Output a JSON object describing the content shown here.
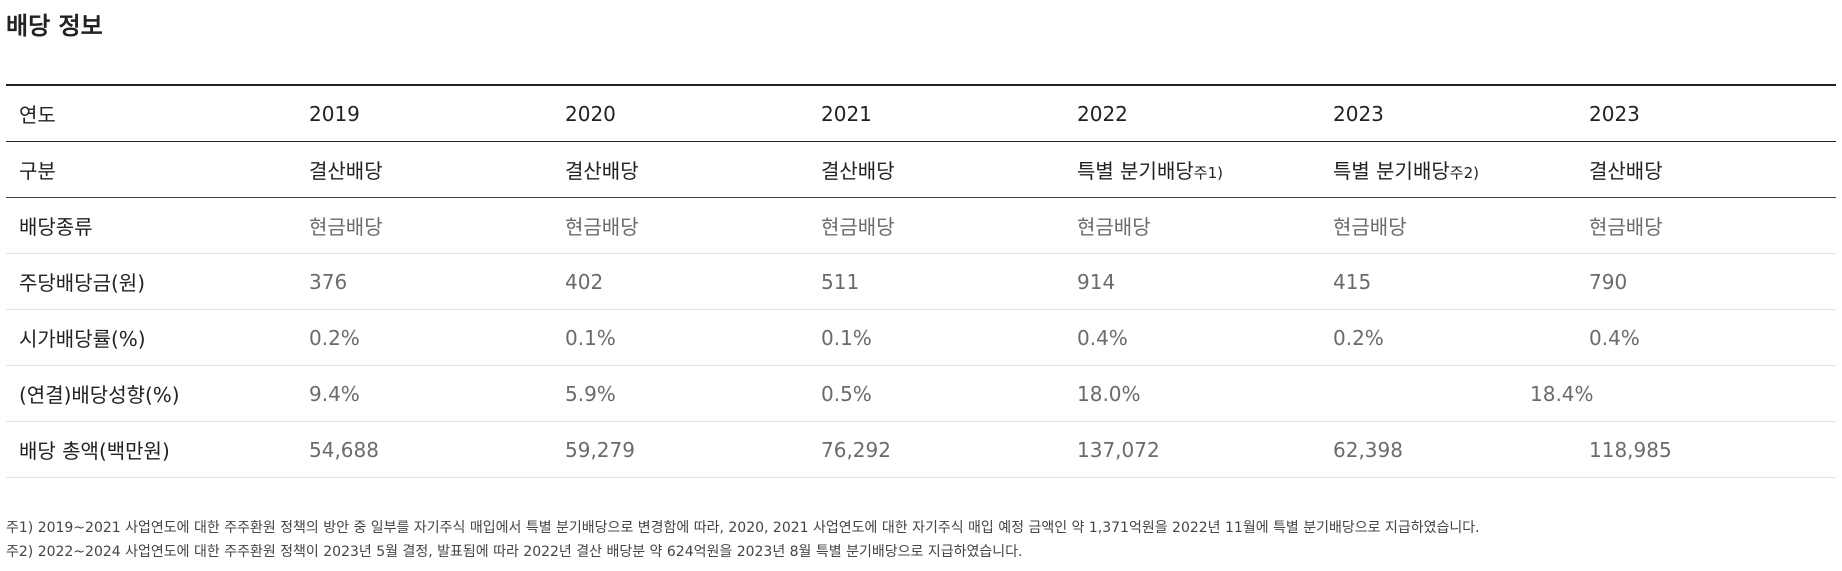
{
  "title": "배당 정보",
  "table": {
    "header": {
      "label": "연도",
      "years": [
        "2019",
        "2020",
        "2021",
        "2022",
        "2023",
        "2023"
      ]
    },
    "type_row": {
      "label": "구분",
      "cells": [
        {
          "text": "결산배당",
          "note": ""
        },
        {
          "text": "결산배당",
          "note": ""
        },
        {
          "text": "결산배당",
          "note": ""
        },
        {
          "text": "특별 분기배당",
          "note": "주1)"
        },
        {
          "text": "특별 분기배당",
          "note": "주2)"
        },
        {
          "text": "결산배당",
          "note": ""
        }
      ]
    },
    "rows": [
      {
        "label": "배당종류",
        "values": [
          "현금배당",
          "현금배당",
          "현금배당",
          "현금배당",
          "현금배당",
          "현금배당"
        ]
      },
      {
        "label": "주당배당금(원)",
        "values": [
          "376",
          "402",
          "511",
          "914",
          "415",
          "790"
        ]
      },
      {
        "label": "시가배당률(%)",
        "values": [
          "0.2%",
          "0.1%",
          "0.1%",
          "0.4%",
          "0.2%",
          "0.4%"
        ]
      }
    ],
    "payout_row": {
      "label": "(연결)배당성향(%)",
      "values": [
        "9.4%",
        "5.9%",
        "0.5%",
        "18.0%"
      ],
      "merged_2023": "18.4%"
    },
    "total_row": {
      "label": "배당 총액(백만원)",
      "values": [
        "54,688",
        "59,279",
        "76,292",
        "137,072",
        "62,398",
        "118,985"
      ]
    }
  },
  "footnotes": [
    "주1) 2019~2021 사업연도에 대한 주주환원 정책의 방안 중 일부를 자기주식 매입에서 특별 분기배당으로 변경함에 따라, 2020, 2021 사업연도에 대한 자기주식 매입 예정 금액인 약 1,371억원을 2022년 11월에 특별 분기배당으로 지급하였습니다.",
    "주2) 2022~2024 사업연도에 대한 주주환원 정책이 2023년 5월 결정, 발표됨에 따라 2022년 결산 배당분 약 624억원을 2023년 8월 특별 분기배당으로 지급하였습니다."
  ]
}
